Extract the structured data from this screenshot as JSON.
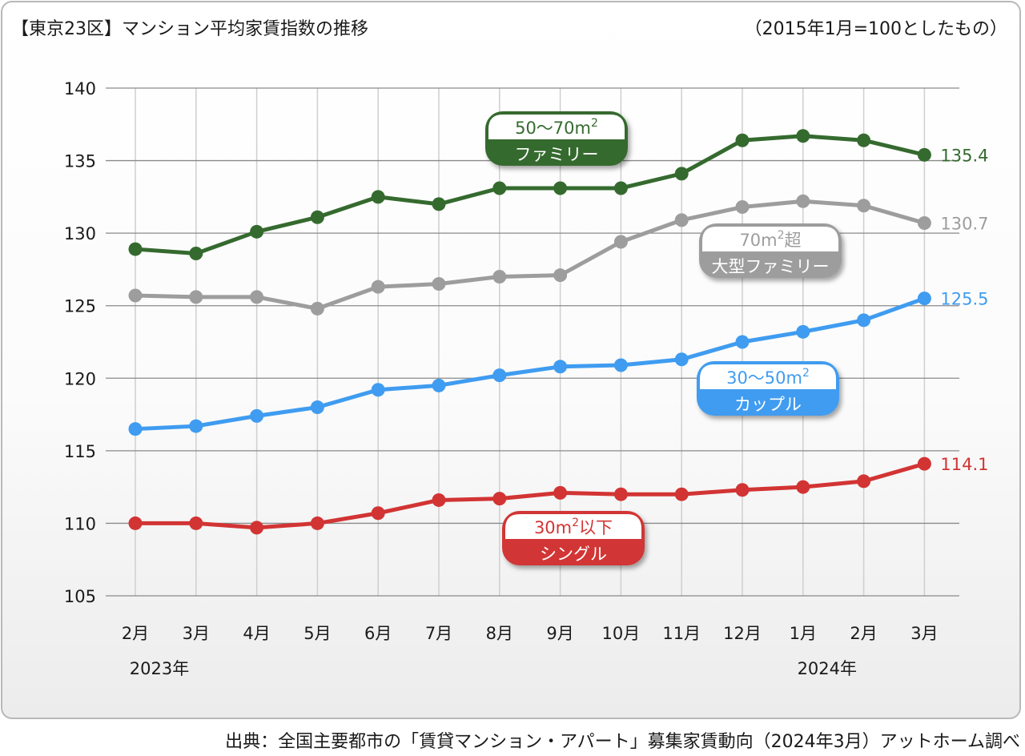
{
  "title": "【東京23区】マンション平均家賃指数の推移",
  "note": "（2015年1月=100としたもの）",
  "source": "出典：全国主要都市の「賃貸マンション・アパート」募集家賃動向（2024年3月）アットホーム調べ",
  "chart_data": {
    "type": "line",
    "categories": [
      "2月",
      "3月",
      "4月",
      "5月",
      "6月",
      "7月",
      "8月",
      "9月",
      "10月",
      "11月",
      "12月",
      "1月",
      "2月",
      "3月"
    ],
    "years": [
      {
        "label": "2023年",
        "start_index": 0
      },
      {
        "label": "2024年",
        "start_index": 11
      }
    ],
    "ylim": [
      105,
      140
    ],
    "yticks": [
      "105",
      "110",
      "115",
      "120",
      "125",
      "130",
      "135",
      "140"
    ],
    "grid": true,
    "series": [
      {
        "key": "family",
        "label_top": "50〜70m",
        "label_sup": "2",
        "label_top_suffix": "",
        "label_bottom": "ファミリー",
        "color": "#356a2f",
        "end_label": "135.4",
        "values": [
          128.9,
          128.6,
          130.1,
          131.1,
          132.5,
          132.0,
          133.1,
          133.1,
          133.1,
          134.1,
          136.4,
          136.7,
          136.4,
          135.4
        ]
      },
      {
        "key": "large",
        "label_top": "70m",
        "label_sup": "2",
        "label_top_suffix": "超",
        "label_bottom": "大型ファミリー",
        "color": "#9d9d9d",
        "end_label": "130.7",
        "values": [
          125.7,
          125.6,
          125.6,
          124.8,
          126.3,
          126.5,
          127.0,
          127.1,
          129.4,
          130.9,
          131.8,
          132.2,
          131.9,
          130.7
        ]
      },
      {
        "key": "couple",
        "label_top": "30〜50m",
        "label_sup": "2",
        "label_top_suffix": "",
        "label_bottom": "カップル",
        "color": "#3f9cf0",
        "end_label": "125.5",
        "values": [
          116.5,
          116.7,
          117.4,
          118.0,
          119.2,
          119.5,
          120.2,
          120.8,
          120.9,
          121.3,
          122.5,
          123.2,
          124.0,
          125.5
        ]
      },
      {
        "key": "single",
        "label_top": "30m",
        "label_sup": "2",
        "label_top_suffix": "以下",
        "label_bottom": "シングル",
        "color": "#d23434",
        "end_label": "114.1",
        "values": [
          110.0,
          110.0,
          109.7,
          110.0,
          110.7,
          111.6,
          111.7,
          112.1,
          112.0,
          112.0,
          112.3,
          112.5,
          112.9,
          114.1
        ]
      }
    ]
  }
}
